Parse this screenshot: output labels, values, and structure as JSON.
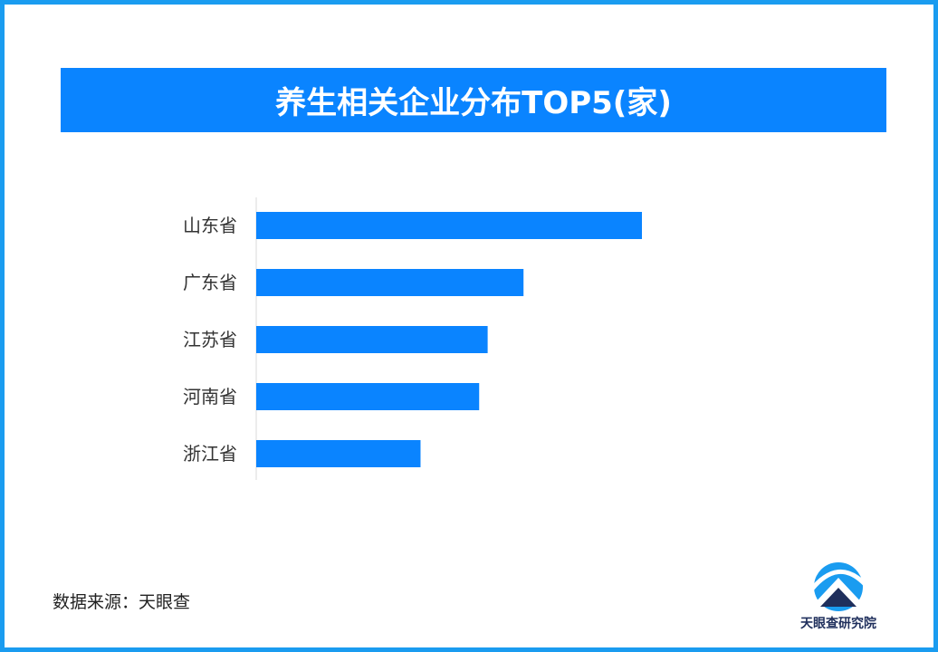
{
  "chart_data": {
    "type": "bar",
    "orientation": "horizontal",
    "title": "养生相关企业分布TOP5(家)",
    "categories": [
      "山东省",
      "广东省",
      "江苏省",
      "河南省",
      "浙江省"
    ],
    "values": [
      1000,
      693,
      600,
      578,
      426
    ],
    "xlim": [
      0,
      1000
    ],
    "grid": false,
    "bar_color": "#0a84ff"
  },
  "footer": {
    "source_text": "数据来源：天眼查",
    "logo_text": "天眼查研究院"
  },
  "colors": {
    "border": "#1a9cf0",
    "banner": "#0a84ff",
    "logo_dark": "#1f2f5c",
    "logo_accent": "#1a9cf0"
  },
  "icons": {
    "logo": "tianyancha-logo-icon"
  }
}
